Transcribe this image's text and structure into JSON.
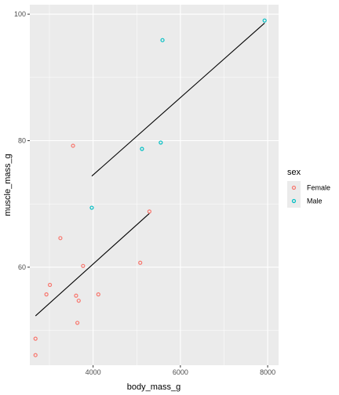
{
  "chart_data": {
    "type": "scatter",
    "xlabel": "body_mass_g",
    "ylabel": "muscle_mass_g",
    "xlim": [
      2550,
      8250
    ],
    "ylim": [
      44.5,
      101.5
    ],
    "x_ticks": [
      4000,
      6000,
      8000
    ],
    "x_tick_labels": [
      "4000",
      "6000",
      "8000"
    ],
    "y_ticks": [
      60,
      80,
      100
    ],
    "y_tick_labels": [
      "60",
      "80",
      "100"
    ],
    "grid": true,
    "legend": {
      "title": "sex",
      "position": "right",
      "entries": [
        {
          "label": "Female",
          "color": "#F8766D"
        },
        {
          "label": "Male",
          "color": "#00BFC4"
        }
      ]
    },
    "series": [
      {
        "name": "Female",
        "color": "#F8766D",
        "points": [
          {
            "x": 2680,
            "y": 46.1
          },
          {
            "x": 2680,
            "y": 48.7
          },
          {
            "x": 2930,
            "y": 55.7
          },
          {
            "x": 3010,
            "y": 57.2
          },
          {
            "x": 3250,
            "y": 64.6
          },
          {
            "x": 3540,
            "y": 79.2
          },
          {
            "x": 3610,
            "y": 55.5
          },
          {
            "x": 3640,
            "y": 51.2
          },
          {
            "x": 3670,
            "y": 54.7
          },
          {
            "x": 3770,
            "y": 60.2
          },
          {
            "x": 4120,
            "y": 55.7
          },
          {
            "x": 5080,
            "y": 60.7
          },
          {
            "x": 5290,
            "y": 68.8
          }
        ],
        "fit": {
          "x": [
            2680,
            5290
          ],
          "y": [
            52.3,
            68.5
          ]
        }
      },
      {
        "name": "Male",
        "color": "#00BFC4",
        "points": [
          {
            "x": 3970,
            "y": 69.4
          },
          {
            "x": 5120,
            "y": 78.7
          },
          {
            "x": 5550,
            "y": 79.7
          },
          {
            "x": 5590,
            "y": 95.9
          },
          {
            "x": 7930,
            "y": 99.0
          }
        ],
        "fit": {
          "x": [
            3970,
            7930
          ],
          "y": [
            74.4,
            98.6
          ]
        }
      }
    ]
  }
}
